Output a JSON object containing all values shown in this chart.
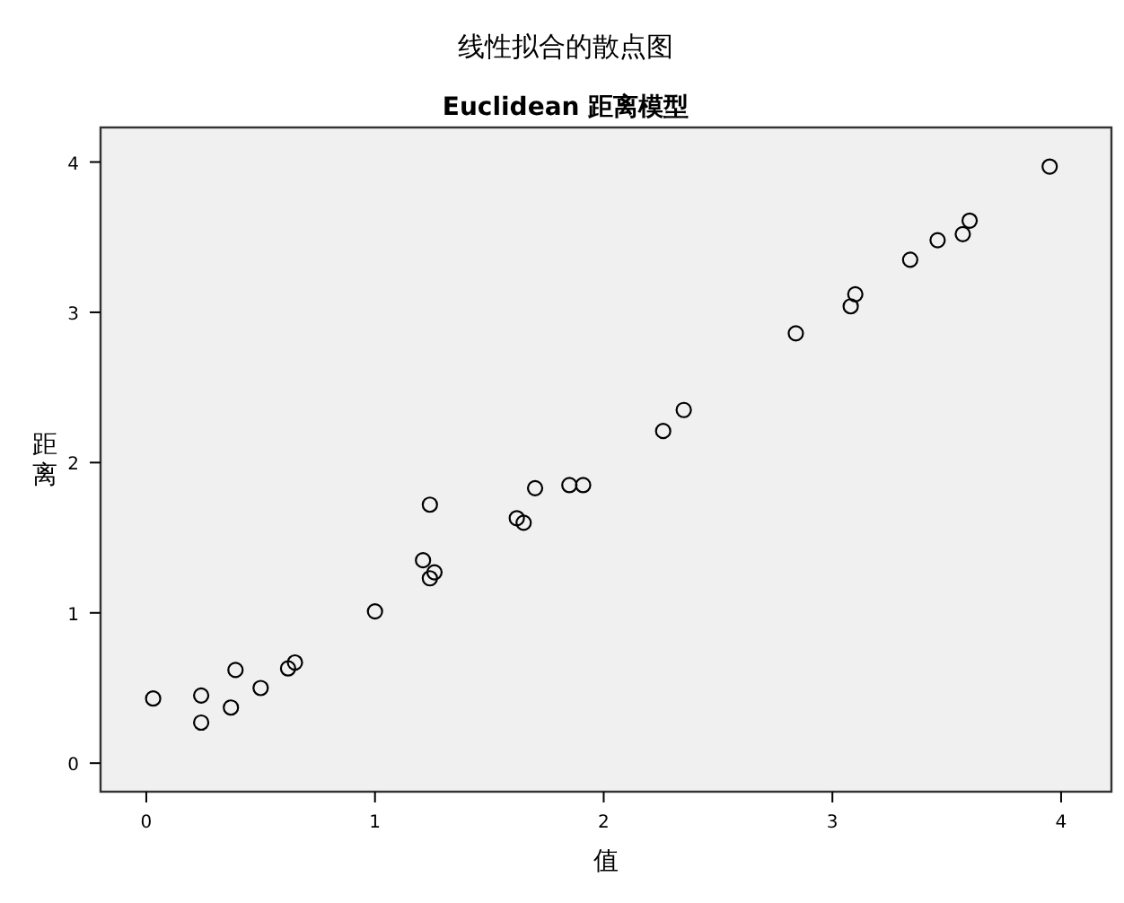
{
  "chart_data": {
    "type": "scatter",
    "title": "线性拟合的散点图",
    "subtitle": "Euclidean 距离模型",
    "xlabel": "值",
    "ylabel": "距离",
    "xlim": [
      -0.2,
      4.22
    ],
    "ylim": [
      -0.19,
      4.23
    ],
    "xticks": [
      0,
      1,
      2,
      3,
      4
    ],
    "yticks": [
      0,
      1,
      2,
      3,
      4
    ],
    "grid": false,
    "marker": "circle",
    "series": [
      {
        "color": "#000000",
        "x": [
          0.03,
          0.24,
          0.24,
          0.37,
          0.39,
          0.5,
          0.62,
          0.65,
          1.0,
          1.21,
          1.24,
          1.24,
          1.26,
          1.62,
          1.65,
          1.7,
          1.85,
          1.91,
          2.26,
          2.35,
          2.84,
          3.08,
          3.1,
          3.34,
          3.46,
          3.57,
          3.6,
          3.95
        ],
        "values": [
          0.43,
          0.45,
          0.27,
          0.37,
          0.62,
          0.5,
          0.63,
          0.67,
          1.01,
          1.35,
          1.72,
          1.23,
          1.27,
          1.63,
          1.6,
          1.83,
          1.85,
          1.85,
          2.21,
          2.35,
          2.86,
          3.04,
          3.12,
          3.35,
          3.48,
          3.52,
          3.61,
          3.97
        ]
      }
    ]
  }
}
